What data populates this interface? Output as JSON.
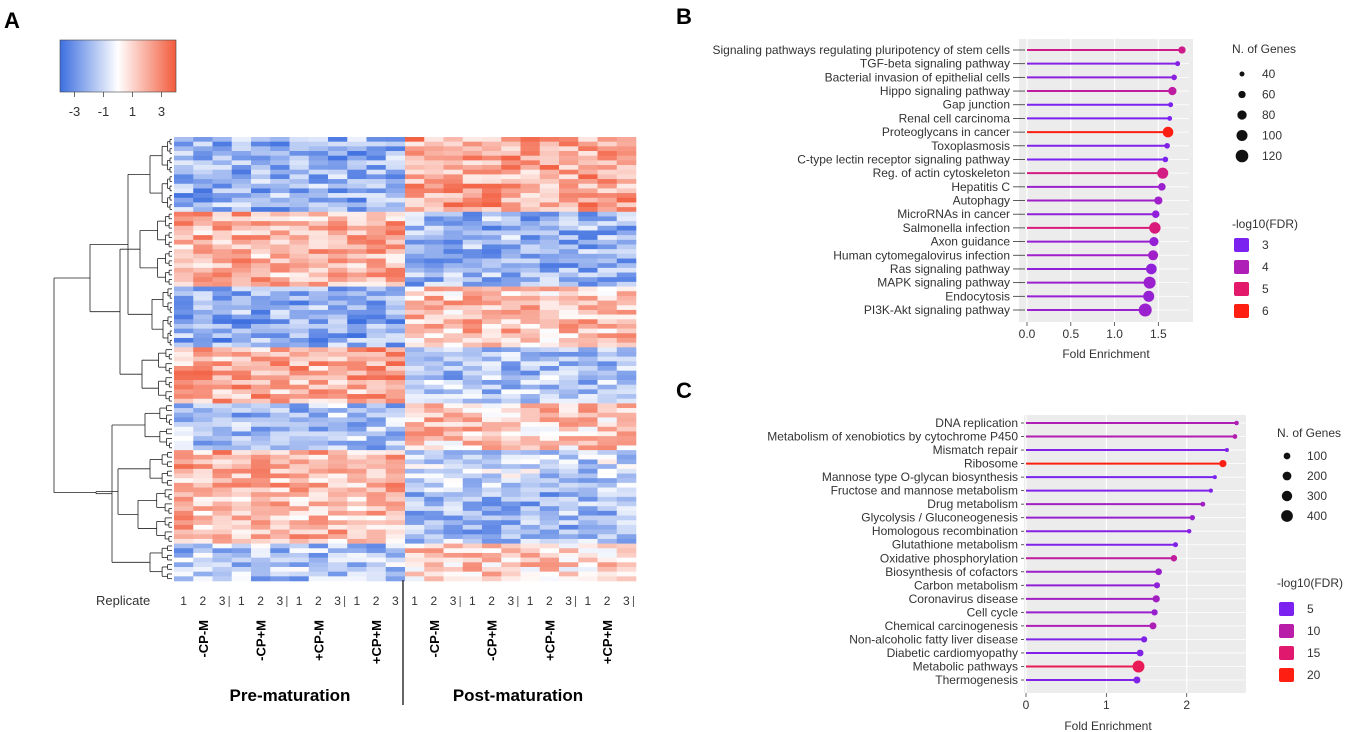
{
  "panels": {
    "a": "A",
    "b": "B",
    "c": "C"
  },
  "colors": {
    "heat_low": "#3d6fe0",
    "heat_mid": "#ffffff",
    "heat_high": "#f25b3c",
    "fdr_scale_b": [
      "#7b22f0",
      "#b01eb8",
      "#e3196c",
      "#ff1f12"
    ],
    "fdr_scale_c": [
      "#7b22f0",
      "#b81ea8",
      "#e0196f",
      "#ff1f12"
    ],
    "grid_bg": "#ececec"
  },
  "chart_data": [
    {
      "type": "heatmap",
      "panel": "A",
      "colorbar": {
        "ticks": [
          -3,
          -1,
          1,
          3
        ],
        "range": [
          -4,
          4
        ]
      },
      "replicate_label": "Replicate",
      "replicates": [
        "1",
        "2",
        "3",
        "1",
        "2",
        "3",
        "1",
        "2",
        "3",
        "1",
        "2",
        "3",
        "1",
        "2",
        "3",
        "1",
        "2",
        "3",
        "1",
        "2",
        "3",
        "1",
        "2",
        "3"
      ],
      "conditions": [
        "-CP-M",
        "-CP+M",
        "+CP-M",
        "+CP+M",
        "-CP-M",
        "-CP+M",
        "+CP-M",
        "+CP+M"
      ],
      "groups": [
        "Pre-maturation",
        "Post-maturation"
      ],
      "row_blocks": [
        {
          "rows": 16,
          "pre": -1.6,
          "post": 1.6
        },
        {
          "rows": 16,
          "pre": 1.4,
          "post": -1.5
        },
        {
          "rows": 13,
          "pre": -1.7,
          "post": 1.1
        },
        {
          "rows": 12,
          "pre": 1.5,
          "post": -1.2
        },
        {
          "rows": 10,
          "pre": -1.3,
          "post": 1.0
        },
        {
          "rows": 8,
          "pre": 1.4,
          "post": -0.9
        },
        {
          "rows": 12,
          "pre": 1.2,
          "post": -1.4
        },
        {
          "rows": 8,
          "pre": -1.2,
          "post": 0.8
        }
      ]
    },
    {
      "type": "lollipop",
      "panel": "B",
      "xlabel": "Fold Enrichment",
      "xlim": [
        0,
        1.85
      ],
      "xticks": [
        "0.0",
        "0.5",
        "1.0",
        "1.5"
      ],
      "size_title": "N. of Genes",
      "size_legend": [
        "40",
        "60",
        "80",
        "100",
        "120"
      ],
      "color_title": "-log10(FDR)",
      "color_legend": [
        "3",
        "4",
        "5",
        "6"
      ],
      "pathways": [
        {
          "name": "Signaling pathways regulating pluripotency of stem cells",
          "fold": 1.77,
          "fdr": 4.6,
          "genes": 60
        },
        {
          "name": "TGF-beta signaling pathway",
          "fold": 1.72,
          "fdr": 3.2,
          "genes": 40
        },
        {
          "name": "Bacterial invasion of epithelial cells",
          "fold": 1.68,
          "fdr": 3.3,
          "genes": 45
        },
        {
          "name": "Hippo signaling pathway",
          "fold": 1.66,
          "fdr": 4.3,
          "genes": 70
        },
        {
          "name": "Gap junction",
          "fold": 1.64,
          "fdr": 2.9,
          "genes": 40
        },
        {
          "name": "Renal cell carcinoma",
          "fold": 1.63,
          "fdr": 2.9,
          "genes": 38
        },
        {
          "name": "Proteoglycans in cancer",
          "fold": 1.61,
          "fdr": 6.0,
          "genes": 95
        },
        {
          "name": "Toxoplasmosis",
          "fold": 1.6,
          "fdr": 3.1,
          "genes": 45
        },
        {
          "name": "C-type lectin receptor signaling pathway",
          "fold": 1.58,
          "fdr": 3.0,
          "genes": 45
        },
        {
          "name": "Reg. of actin cytoskeleton",
          "fold": 1.55,
          "fdr": 4.7,
          "genes": 100
        },
        {
          "name": "Hepatitis C",
          "fold": 1.54,
          "fdr": 3.6,
          "genes": 62
        },
        {
          "name": "Autophagy",
          "fold": 1.5,
          "fdr": 3.7,
          "genes": 68
        },
        {
          "name": "MicroRNAs in cancer",
          "fold": 1.47,
          "fdr": 3.4,
          "genes": 62
        },
        {
          "name": "Salmonella infection",
          "fold": 1.46,
          "fdr": 4.8,
          "genes": 105
        },
        {
          "name": "Axon guidance",
          "fold": 1.45,
          "fdr": 3.5,
          "genes": 78
        },
        {
          "name": "Human cytomegalovirus infection",
          "fold": 1.44,
          "fdr": 3.7,
          "genes": 88
        },
        {
          "name": "Ras signaling pathway",
          "fold": 1.42,
          "fdr": 3.4,
          "genes": 95
        },
        {
          "name": "MAPK signaling pathway",
          "fold": 1.4,
          "fdr": 3.6,
          "genes": 112
        },
        {
          "name": "Endocytosis",
          "fold": 1.39,
          "fdr": 3.5,
          "genes": 100
        },
        {
          "name": "PI3K-Akt signaling pathway",
          "fold": 1.35,
          "fdr": 3.6,
          "genes": 125
        }
      ]
    },
    {
      "type": "lollipop",
      "panel": "C",
      "xlabel": "Fold Enrichment",
      "xlim": [
        0,
        2.75
      ],
      "xticks": [
        "0",
        "1",
        "2"
      ],
      "size_title": "N. of Genes",
      "size_legend": [
        "100",
        "200",
        "300",
        "400"
      ],
      "color_title": "-log10(FDR)",
      "color_legend": [
        "5",
        "10",
        "15",
        "20"
      ],
      "pathways": [
        {
          "name": "DNA replication",
          "fold": 2.62,
          "fdr": 8.0,
          "genes": 30
        },
        {
          "name": "Metabolism of xenobiotics by cytochrome P450",
          "fold": 2.6,
          "fdr": 8.5,
          "genes": 35
        },
        {
          "name": "Mismatch repair",
          "fold": 2.5,
          "fdr": 4.0,
          "genes": 20
        },
        {
          "name": "Ribosome",
          "fold": 2.45,
          "fdr": 20.0,
          "genes": 120
        },
        {
          "name": "Mannose type O-glycan biosynthesis",
          "fold": 2.35,
          "fdr": 3.5,
          "genes": 20
        },
        {
          "name": "Fructose and mannose metabolism",
          "fold": 2.3,
          "fdr": 4.0,
          "genes": 25
        },
        {
          "name": "Drug metabolism",
          "fold": 2.2,
          "fdr": 7.0,
          "genes": 40
        },
        {
          "name": "Glycolysis / Gluconeogenesis",
          "fold": 2.07,
          "fdr": 6.0,
          "genes": 50
        },
        {
          "name": "Homologous recombination",
          "fold": 2.03,
          "fdr": 4.5,
          "genes": 30
        },
        {
          "name": "Glutathione metabolism",
          "fold": 1.86,
          "fdr": 4.0,
          "genes": 45
        },
        {
          "name": "Oxidative phosphorylation",
          "fold": 1.84,
          "fdr": 10.0,
          "genes": 90
        },
        {
          "name": "Biosynthesis of cofactors",
          "fold": 1.65,
          "fdr": 6.5,
          "genes": 100
        },
        {
          "name": "Carbon metabolism",
          "fold": 1.63,
          "fdr": 5.5,
          "genes": 75
        },
        {
          "name": "Coronavirus disease",
          "fold": 1.62,
          "fdr": 7.0,
          "genes": 120
        },
        {
          "name": "Cell cycle",
          "fold": 1.6,
          "fdr": 6.0,
          "genes": 80
        },
        {
          "name": "Chemical carcinogenesis",
          "fold": 1.58,
          "fdr": 8.0,
          "genes": 110
        },
        {
          "name": "Non-alcoholic fatty liver disease",
          "fold": 1.47,
          "fdr": 4.0,
          "genes": 80
        },
        {
          "name": "Diabetic cardiomyopathy",
          "fold": 1.42,
          "fdr": 4.0,
          "genes": 100
        },
        {
          "name": "Metabolic pathways",
          "fold": 1.4,
          "fdr": 16.0,
          "genes": 420
        },
        {
          "name": "Thermogenesis",
          "fold": 1.38,
          "fdr": 4.0,
          "genes": 110
        }
      ]
    }
  ]
}
